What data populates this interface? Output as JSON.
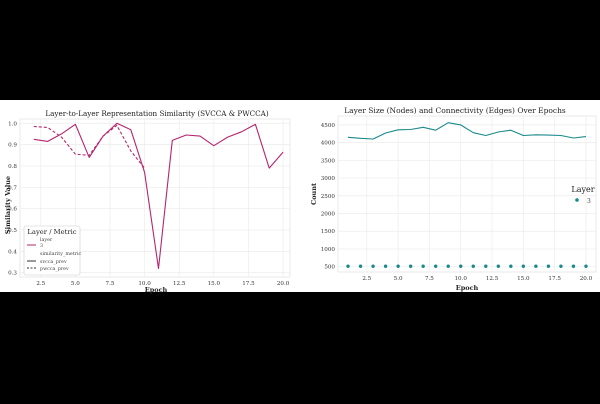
{
  "chart_data": [
    {
      "type": "line",
      "title": "Layer-to-Layer Representation Similarity (SVCCA & PWCCA)",
      "xlabel": "Epoch",
      "ylabel": "Similarity Value",
      "xlim": [
        1,
        20.5
      ],
      "ylim": [
        0.28,
        1.02
      ],
      "xticks": [
        "2.5",
        "5.0",
        "7.5",
        "10.0",
        "12.5",
        "15.0",
        "17.5",
        "20.0"
      ],
      "yticks": [
        "0.3",
        "0.4",
        "0.5",
        "0.6",
        "0.7",
        "0.8",
        "0.9",
        "1.0"
      ],
      "grid": true,
      "legend": {
        "position": "lower-left",
        "title": "Layer / Metric",
        "group1_title": "layer",
        "group1_item": "3",
        "group2_title": "similarity_metric",
        "group2_items": [
          "svcca_prev",
          "pwcca_prev"
        ]
      },
      "series": [
        {
          "name": "svcca_prev",
          "style": "solid",
          "color": "#b5256f",
          "x": [
            2,
            3,
            4,
            5,
            6,
            7,
            8,
            9,
            10,
            11,
            12,
            13,
            14,
            15,
            16,
            17,
            18,
            19,
            20
          ],
          "values": [
            0.925,
            0.915,
            0.95,
            0.995,
            0.84,
            0.94,
            1.0,
            0.97,
            0.77,
            0.32,
            0.92,
            0.945,
            0.94,
            0.895,
            0.935,
            0.96,
            0.995,
            0.79,
            0.865
          ]
        },
        {
          "name": "pwcca_prev",
          "style": "dashed",
          "color": "#b5256f",
          "x": [
            2,
            3,
            4,
            5,
            6,
            7,
            8,
            9,
            10
          ],
          "values": [
            0.985,
            0.98,
            0.935,
            0.855,
            0.85,
            0.94,
            0.99,
            0.87,
            0.79
          ]
        }
      ]
    },
    {
      "type": "line",
      "title": "Layer Size (Nodes) and Connectivity (Edges) Over Epochs",
      "xlabel": "Epoch",
      "ylabel": "Count",
      "xlim": [
        0.2,
        20.8
      ],
      "ylim": [
        350,
        4750
      ],
      "xticks": [
        "2.5",
        "5.0",
        "7.5",
        "10.0",
        "12.5",
        "15.0",
        "17.5",
        "20.0"
      ],
      "yticks": [
        "500",
        "1000",
        "1500",
        "2000",
        "2500",
        "3000",
        "3500",
        "4000",
        "4500"
      ],
      "grid": true,
      "legend": {
        "position": "center-right",
        "title": "Layer",
        "items": [
          "3"
        ]
      },
      "series": [
        {
          "style": "line",
          "color": "#1b8a8a",
          "x": [
            1,
            2,
            3,
            4,
            5,
            6,
            7,
            8,
            9,
            10,
            11,
            12,
            13,
            14,
            15,
            16,
            17,
            18,
            19,
            20
          ],
          "values": [
            4150,
            4120,
            4100,
            4270,
            4360,
            4370,
            4430,
            4350,
            4560,
            4500,
            4280,
            4200,
            4300,
            4350,
            4200,
            4220,
            4210,
            4200,
            4130,
            4170
          ]
        },
        {
          "style": "markers",
          "color": "#1b8a8a",
          "x": [
            1,
            2,
            3,
            4,
            5,
            6,
            7,
            8,
            9,
            10,
            11,
            12,
            13,
            14,
            15,
            16,
            17,
            18,
            19,
            20
          ],
          "values": [
            512,
            512,
            512,
            512,
            512,
            512,
            512,
            512,
            512,
            512,
            512,
            512,
            512,
            512,
            512,
            512,
            512,
            512,
            512,
            512
          ]
        }
      ]
    }
  ]
}
